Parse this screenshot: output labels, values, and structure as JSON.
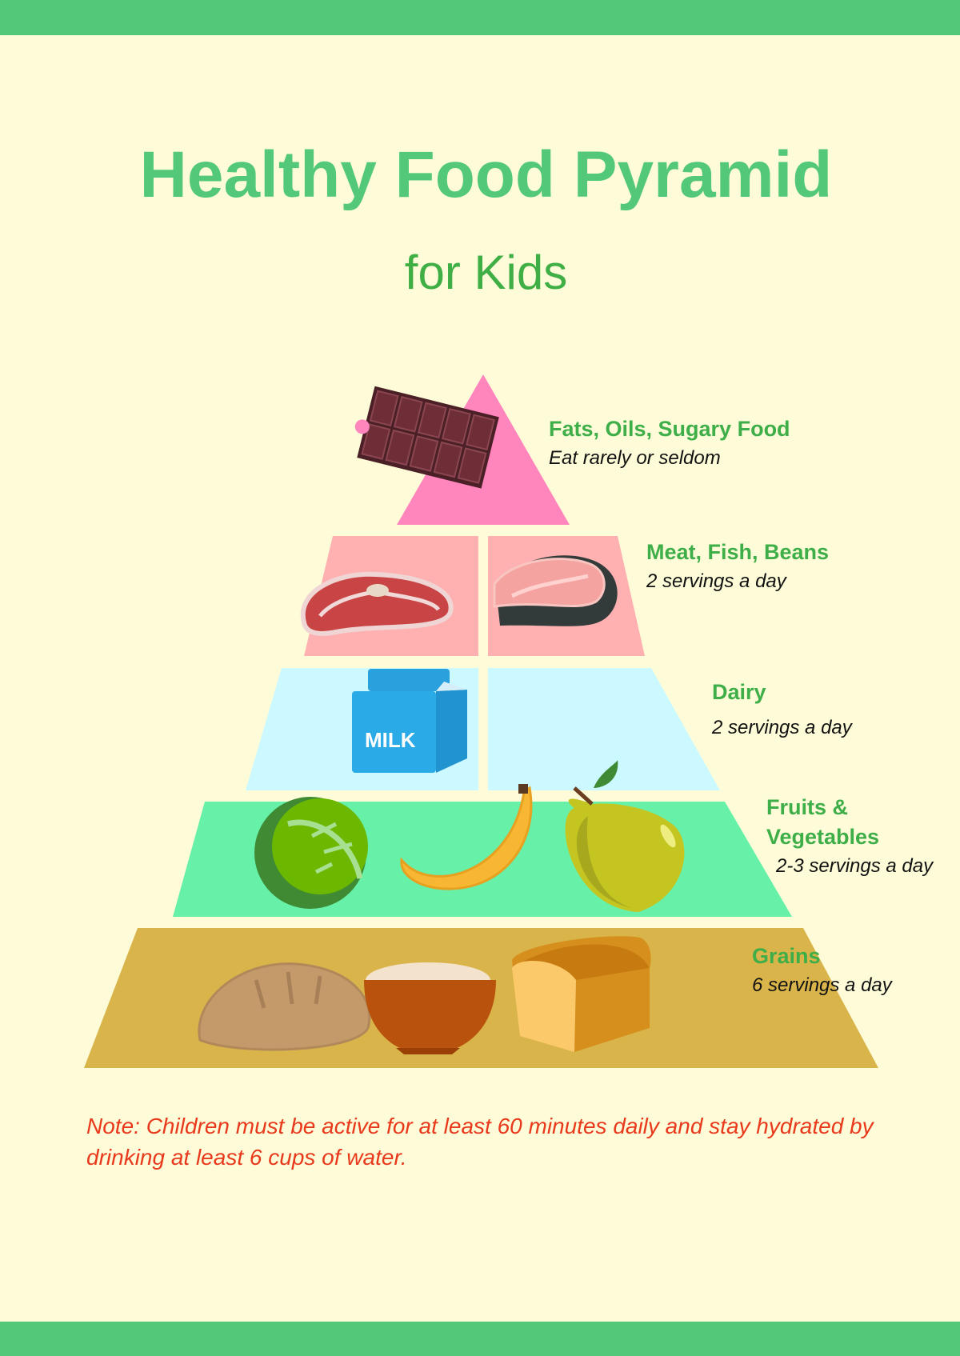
{
  "title": "Healthy Food Pyramid",
  "subtitle": "for Kids",
  "colors": {
    "accent": "#52c878",
    "label": "#3eae48",
    "note": "#e8391c",
    "tier_fats": "#ff85bd",
    "tier_protein": "#ffb0b0",
    "tier_dairy": "#ccf9ff",
    "tier_produce": "#66f0a8",
    "tier_grains": "#d9b44a"
  },
  "tiers": [
    {
      "heading": "Fats, Oils, Sugary Food",
      "servings": "Eat rarely or seldom",
      "icons": [
        "chocolate-bar-icon"
      ]
    },
    {
      "heading": "Meat, Fish, Beans",
      "servings": "2 servings a day",
      "icons": [
        "steak-icon",
        "salmon-icon"
      ]
    },
    {
      "heading": "Dairy",
      "servings": "2 servings a day",
      "icons": [
        "milk-carton-icon"
      ],
      "milk_label": "MILK"
    },
    {
      "heading": "Fruits &",
      "heading2": "Vegetables",
      "servings": "2-3 servings a day",
      "icons": [
        "cabbage-icon",
        "banana-icon",
        "apple-icon"
      ]
    },
    {
      "heading": "Grains",
      "servings": "6 servings a day",
      "icons": [
        "bread-icon",
        "rice-bowl-icon",
        "bread-loaf-icon"
      ]
    }
  ],
  "note": "Note: Children must be active for at least 60 minutes daily and stay hydrated by drinking at least 6 cups of water."
}
